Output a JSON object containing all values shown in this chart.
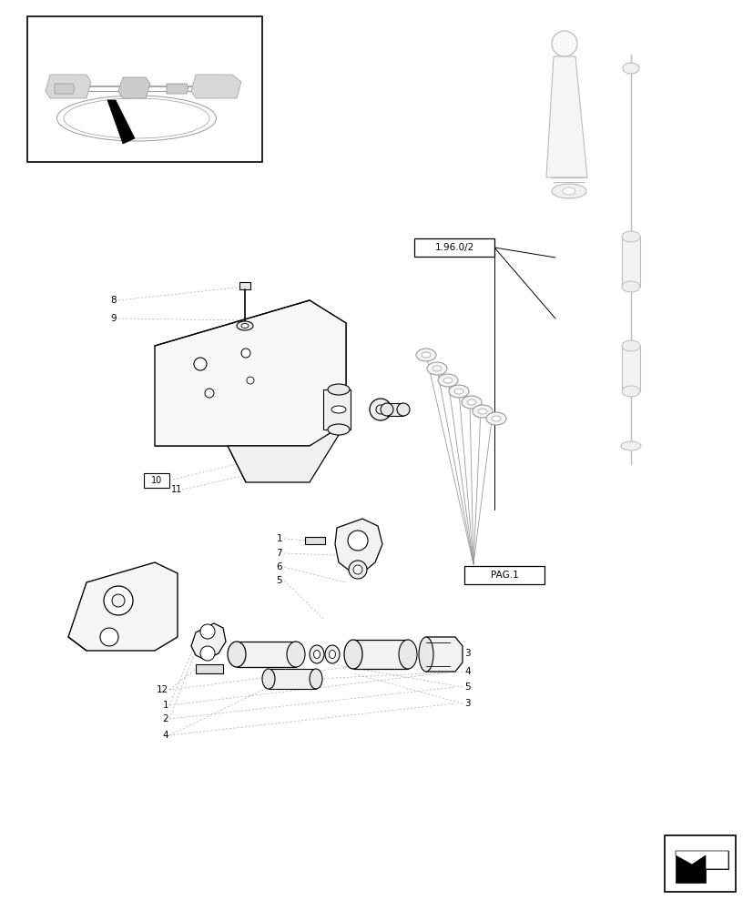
{
  "background_color": "#ffffff",
  "lc": "#000000",
  "lg": "#bbbbbb",
  "mg": "#999999",
  "fig_width": 8.28,
  "fig_height": 10.0,
  "dpi": 100
}
